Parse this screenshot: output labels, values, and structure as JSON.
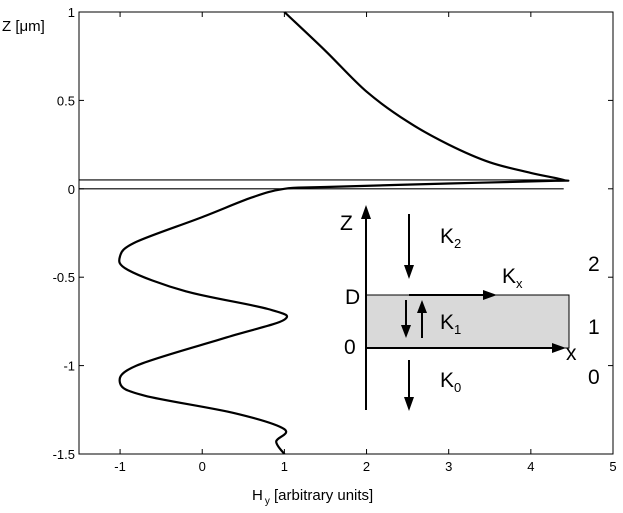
{
  "chart_data": {
    "type": "line",
    "title": "",
    "xlabel_main": "H",
    "xlabel_sub": "y",
    "xlabel_rest": " [arbitrary units]",
    "ylabel": "Z [μm]",
    "xlim": [
      -1.5,
      5
    ],
    "ylim": [
      -1.5,
      1
    ],
    "xticks": [
      -1,
      0,
      1,
      2,
      3,
      4,
      5
    ],
    "xtick_labels": [
      "-1",
      "0",
      "1",
      "2",
      "3",
      "4",
      "5"
    ],
    "yticks": [
      1,
      0.5,
      0,
      -0.5,
      -1,
      -1.5
    ],
    "ytick_labels": [
      "1",
      "0.5",
      "0",
      "-0.5",
      "-1",
      "-1.5"
    ],
    "grid": false,
    "series": [
      {
        "description_values_only": true,
        "x": [
          1.0,
          1.5,
          2.0,
          2.5,
          3.0,
          3.5,
          4.0,
          4.4,
          4.3,
          3.0,
          1.5,
          1.0,
          0.6,
          0.0,
          -0.8,
          -1.0,
          -0.9,
          -0.2,
          0.8,
          1.0,
          0.3,
          -0.8,
          -1.0,
          -0.7,
          0.4,
          1.0,
          0.9,
          1.0
        ],
        "y": [
          1.0,
          0.78,
          0.55,
          0.38,
          0.25,
          0.15,
          0.09,
          0.05,
          0.045,
          0.03,
          0.01,
          0.0,
          -0.05,
          -0.16,
          -0.3,
          -0.38,
          -0.46,
          -0.58,
          -0.68,
          -0.74,
          -0.84,
          -1.0,
          -1.1,
          -1.17,
          -1.27,
          -1.36,
          -1.43,
          -1.5
        ]
      }
    ],
    "boundary_lines_y": [
      0.05,
      0.0
    ],
    "boundary_lines_xrange": [
      -1.5,
      4.4
    ],
    "inset": {
      "labels": {
        "z": "Z",
        "x": "x",
        "d": "D",
        "zero": "0",
        "k2": "K",
        "k2_sub": "2",
        "k1": "K",
        "k1_sub": "1",
        "k0": "K",
        "k0_sub": "0",
        "kx": "K",
        "kx_sub": "x",
        "region2": "2",
        "region1": "1",
        "region0": "0"
      },
      "slab_color": "#d9d9d9"
    }
  }
}
